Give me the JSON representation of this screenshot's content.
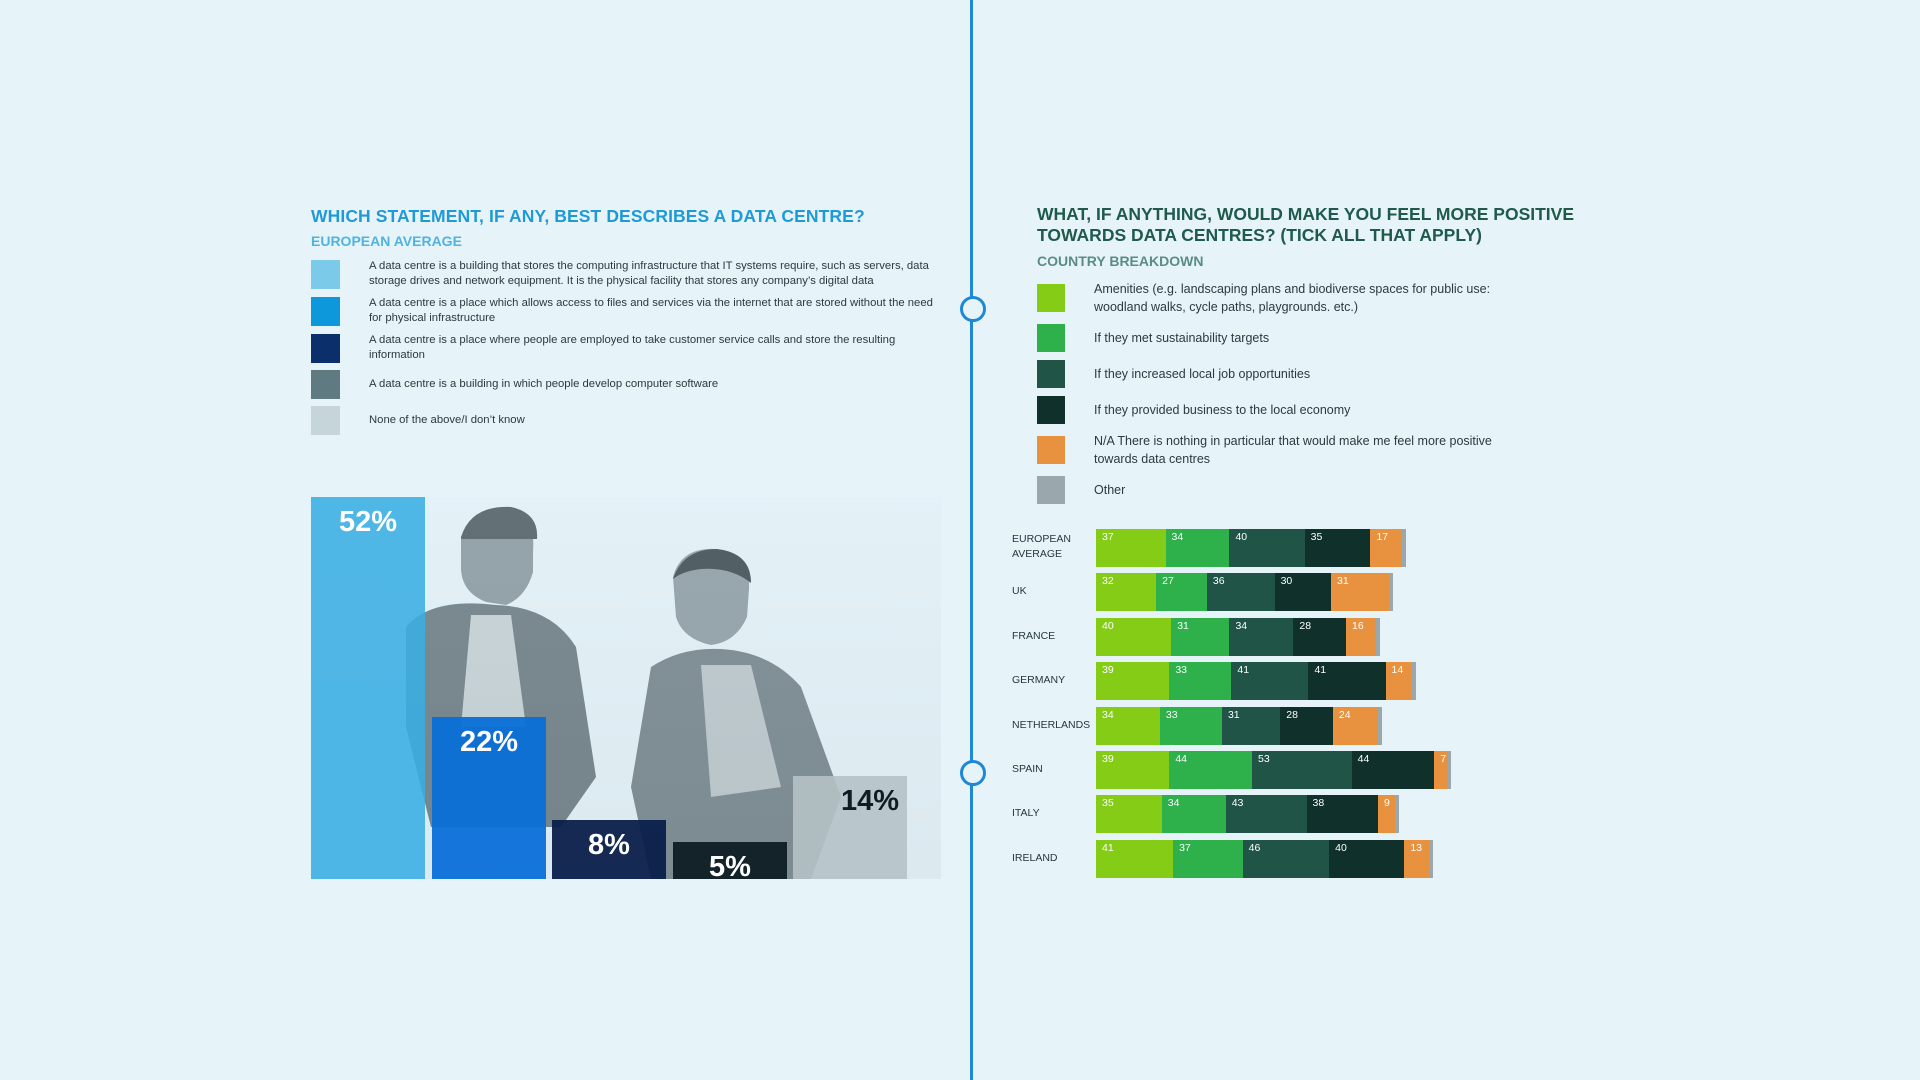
{
  "left_panel": {
    "title": "WHICH STATEMENT, IF ANY, BEST DESCRIBES A DATA CENTRE?",
    "subtitle": "EUROPEAN AVERAGE",
    "legend": [
      {
        "text": "A data centre is a building that stores the computing infrastructure that IT systems require, such as servers, data storage drives and network equipment. It is the physical facility that stores any company’s digital data",
        "color": "#7ccaea"
      },
      {
        "text": "A data centre is a place which allows access to files and services via the internet that are stored without the need for physical infrastructure",
        "color": "#0e98dc"
      },
      {
        "text": "A data centre is a place where people are employed to take customer service calls and store the resulting information",
        "color": "#0b2f6a"
      },
      {
        "text": "A data centre is a building in which people develop computer software",
        "color": "#5f7a80"
      },
      {
        "text": "None of the above/I don’t know",
        "color": "#c5d5da"
      }
    ]
  },
  "right_panel": {
    "title_line1": "WHAT, IF ANYTHING, WOULD MAKE YOU FEEL MORE POSITIVE",
    "title_line2": "TOWARDS DATA CENTRES? (TICK ALL THAT APPLY)",
    "subtitle": "COUNTRY BREAKDOWN",
    "legend": [
      {
        "text": "Amenities (e.g. landscaping plans and biodiverse spaces for public use: woodland walks, cycle paths, playgrounds. etc.)",
        "color": "#84cc16"
      },
      {
        "text": "If they met sustainability targets",
        "color": "#2eb04a"
      },
      {
        "text": "If they increased local job opportunities",
        "color": "#1f5447"
      },
      {
        "text": "If they provided business to the local economy",
        "color": "#10302b"
      },
      {
        "text": "N/A There is nothing in particular that would make me feel more positive towards data centres",
        "color": "#e8923f"
      },
      {
        "text": "Other",
        "color": "#9aa8ad"
      }
    ]
  },
  "chart_data": [
    {
      "type": "bar",
      "title": "WHICH STATEMENT, IF ANY, BEST DESCRIBES A DATA CENTRE?",
      "subtitle": "EUROPEAN AVERAGE",
      "categories": [
        "A data centre is a building that stores the computing infrastructure",
        "A data centre is a place which allows access to files and services via the internet",
        "A data centre is a place where people are employed to take customer service calls",
        "A data centre is a building in which people develop computer software",
        "None of the above/I don’t know"
      ],
      "values": [
        52,
        22,
        8,
        5,
        14
      ],
      "labels": [
        "52%",
        "22%",
        "8%",
        "5%",
        "14%"
      ],
      "colors": [
        "#3aaee4",
        "#0a6fd8",
        "#0a1f4a",
        "#0f1c24",
        "#b5c2c6"
      ],
      "label_colors": [
        "#ffffff",
        "#ffffff",
        "#ffffff",
        "#ffffff",
        "#0f1c24"
      ],
      "ylim": [
        0,
        52
      ]
    },
    {
      "type": "bar",
      "orientation": "horizontal",
      "stacked": true,
      "title": "WHAT, IF ANYTHING, WOULD MAKE YOU FEEL MORE POSITIVE TOWARDS DATA CENTRES? (TICK ALL THAT APPLY)",
      "subtitle": "COUNTRY BREAKDOWN",
      "categories": [
        "EUROPEAN AVERAGE",
        "UK",
        "FRANCE",
        "GERMANY",
        "NETHERLANDS",
        "SPAIN",
        "ITALY",
        "IRELAND"
      ],
      "category_lines": [
        [
          "EUROPEAN",
          "AVERAGE"
        ],
        [
          "UK"
        ],
        [
          "FRANCE"
        ],
        [
          "GERMANY"
        ],
        [
          "NETHERLANDS"
        ],
        [
          "SPAIN"
        ],
        [
          "ITALY"
        ],
        [
          "IRELAND"
        ]
      ],
      "series": [
        {
          "name": "Amenities",
          "color": "#84cc16",
          "values": [
            37,
            32,
            40,
            39,
            34,
            39,
            35,
            41
          ]
        },
        {
          "name": "If they met sustainability targets",
          "color": "#2eb04a",
          "values": [
            34,
            27,
            31,
            33,
            33,
            44,
            34,
            37
          ]
        },
        {
          "name": "If they increased local job opportunities",
          "color": "#1f5447",
          "values": [
            40,
            36,
            34,
            41,
            31,
            53,
            43,
            46
          ]
        },
        {
          "name": "If they provided business to the local economy",
          "color": "#10302b",
          "values": [
            35,
            30,
            28,
            41,
            28,
            44,
            38,
            40
          ]
        },
        {
          "name": "N/A There is nothing in particular",
          "color": "#e8923f",
          "values": [
            17,
            31,
            16,
            14,
            24,
            7,
            9,
            13
          ]
        },
        {
          "name": "Other",
          "color": "#9aa8ad",
          "values": [
            2,
            2,
            2,
            2,
            2,
            2,
            2,
            2
          ]
        }
      ]
    }
  ]
}
